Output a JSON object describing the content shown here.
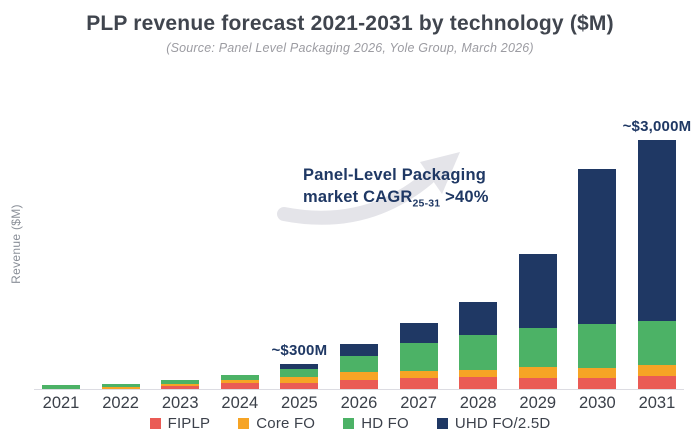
{
  "header": {
    "title": "PLP revenue forecast 2021-2031 by technology ($M)",
    "subtitle": "(Source: Panel Level Packaging 2026, Yole Group, March 2026)"
  },
  "chart": {
    "ylabel": "Revenue ($M)",
    "cagr_annotation": {
      "line1": "Panel-Level Packaging",
      "line2_prefix": "market CAGR",
      "line2_sub": "25-31",
      "line2_suffix": " >40%"
    }
  },
  "chart_data": {
    "type": "bar",
    "stacked": true,
    "title": "PLP revenue forecast 2021-2031 by technology ($M)",
    "source": "(Source: Panel Level Packaging 2026, Yole Group, March 2026)",
    "xlabel": "",
    "ylabel": "Revenue ($M)",
    "ylim": [
      0,
      3100
    ],
    "grid": false,
    "legend_position": "bottom",
    "categories": [
      "2021",
      "2022",
      "2023",
      "2024",
      "2025",
      "2026",
      "2027",
      "2028",
      "2029",
      "2030",
      "2031"
    ],
    "series": [
      {
        "name": "FIPLP",
        "color": "#ea5b55",
        "values": [
          0,
          5,
          35,
          70,
          70,
          110,
          135,
          145,
          135,
          135,
          155
        ]
      },
      {
        "name": "Core FO",
        "color": "#f6a425",
        "values": [
          5,
          15,
          25,
          35,
          70,
          95,
          80,
          90,
          135,
          120,
          135
        ]
      },
      {
        "name": "HD FO",
        "color": "#4cb266",
        "values": [
          40,
          40,
          45,
          70,
          105,
          190,
          345,
          420,
          470,
          530,
          530
        ]
      },
      {
        "name": "UHD FO/2.5D",
        "color": "#1f3864",
        "values": [
          0,
          0,
          0,
          0,
          60,
          150,
          240,
          395,
          890,
          1865,
          2180
        ]
      }
    ],
    "totals_approx": [
      45,
      60,
      105,
      175,
      305,
      545,
      800,
      1050,
      1630,
      2650,
      3000
    ],
    "bar_annotations": [
      {
        "category": "2025",
        "label": "~$300M"
      },
      {
        "category": "2031",
        "label": "~$3,000M"
      }
    ]
  }
}
